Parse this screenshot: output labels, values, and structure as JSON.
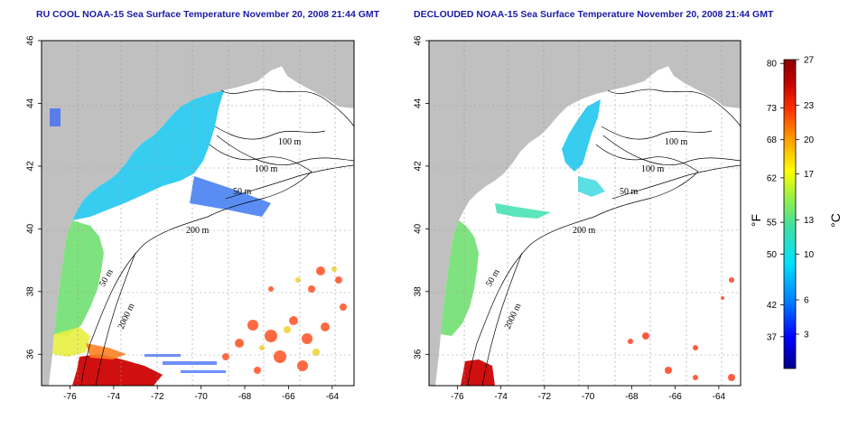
{
  "panels": [
    {
      "title": "RU COOL NOAA-15 Sea Surface Temperature November 20, 2008 21:44 GMT",
      "contour_labels": [
        "100 m",
        "100 m",
        "50 m",
        "200 m",
        "50 m",
        "2000 m"
      ]
    },
    {
      "title": "DECLOUDED NOAA-15 Sea Surface Temperature November 20, 2008 21:44 GMT",
      "contour_labels": [
        "100 m",
        "100 m",
        "50 m",
        "200 m",
        "50 m",
        "2000 m"
      ]
    }
  ],
  "map_axes": {
    "lon_ticks": [
      "-76",
      "-74",
      "-72",
      "-70",
      "-68",
      "-66",
      "-64"
    ],
    "lat_ticks": [
      "46",
      "44",
      "42",
      "40",
      "38",
      "36"
    ],
    "lon_range": [
      -77.3,
      -63.0
    ],
    "lat_range": [
      35.0,
      46.0
    ],
    "grid": "dotted"
  },
  "colorbar": {
    "fahrenheit_label": "°F",
    "celsius_label": "°C",
    "fahrenheit_ticks": [
      "80",
      "73",
      "68",
      "62",
      "55",
      "50",
      "42",
      "37"
    ],
    "celsius_ticks": [
      "27",
      "23",
      "20",
      "17",
      "13",
      "10",
      "6",
      "3"
    ],
    "celsius_range": [
      0,
      27
    ],
    "colors": [
      "#00008b",
      "#0000ff",
      "#0080ff",
      "#00e0ff",
      "#40e0a0",
      "#a0f040",
      "#ffff00",
      "#ffa000",
      "#ff3000",
      "#c00000",
      "#8b0000"
    ]
  },
  "colors": {
    "land": "#c0c0c0",
    "ocean": "#ffffff",
    "title": "#1a1aa6",
    "contour": "#000000"
  }
}
